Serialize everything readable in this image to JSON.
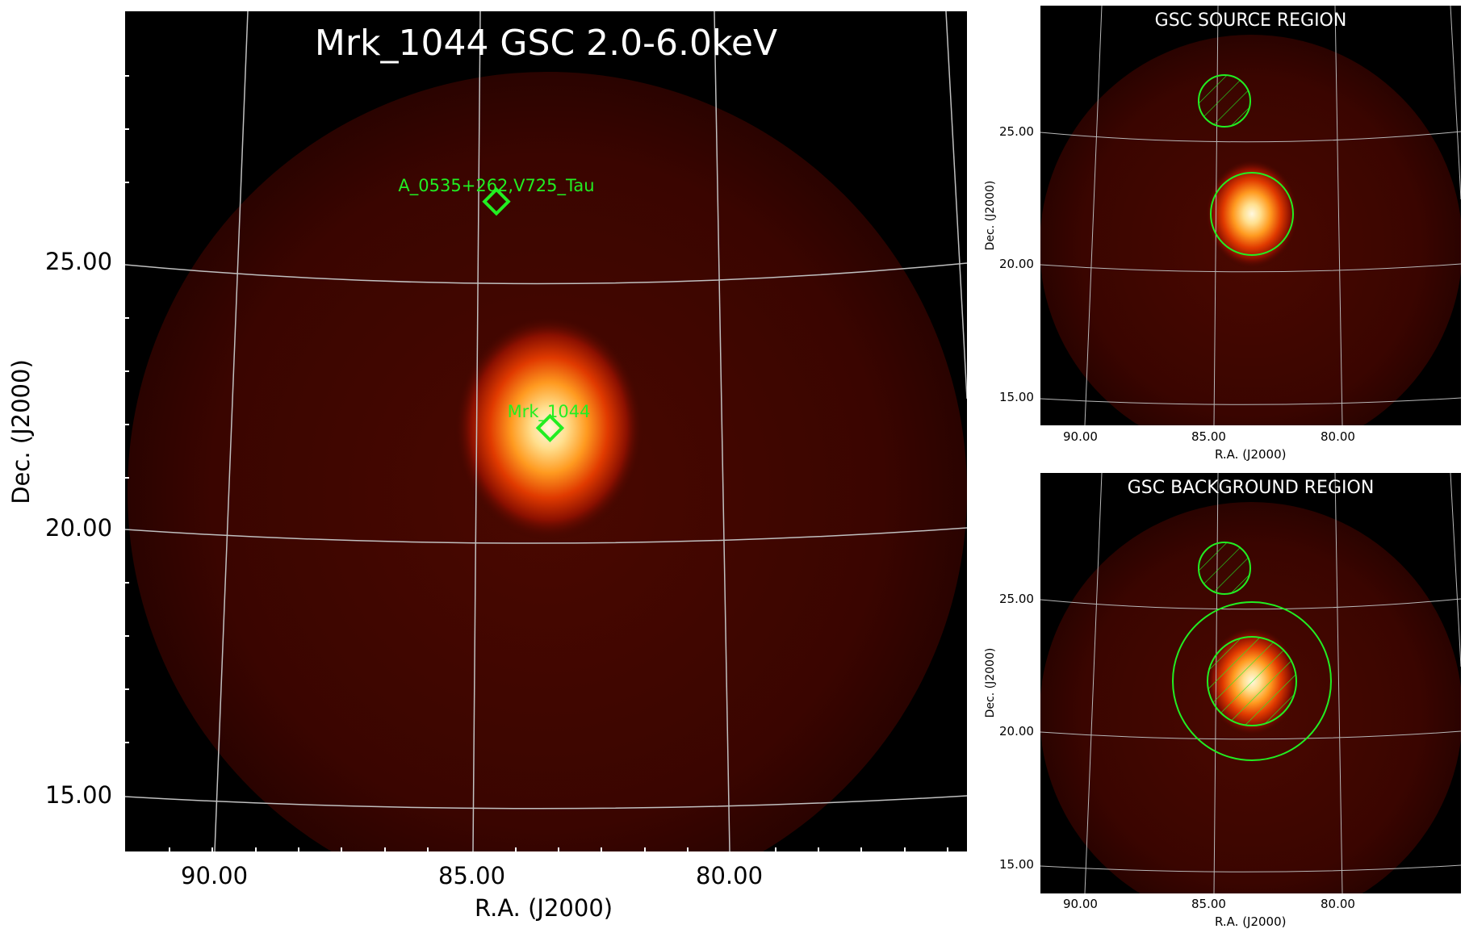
{
  "main": {
    "title": "Mrk_1044 GSC 2.0-6.0keV",
    "xlabel": "R.A. (J2000)",
    "ylabel": "Dec. (J2000)",
    "xticks": [
      "90.00",
      "85.00",
      "80.00"
    ],
    "yticks": [
      "25.00",
      "20.00",
      "15.00"
    ],
    "sources": [
      {
        "name": "A_0535+262,V725_Tau"
      },
      {
        "name": "Mrk_1044"
      }
    ]
  },
  "source_panel": {
    "title": "GSC SOURCE REGION",
    "xlabel": "R.A. (J2000)",
    "ylabel": "Dec. (J2000)",
    "xticks": [
      "90.00",
      "85.00",
      "80.00"
    ],
    "yticks": [
      "25.00",
      "20.00",
      "15.00"
    ]
  },
  "background_panel": {
    "title": "GSC BACKGROUND REGION",
    "xlabel": "R.A. (J2000)",
    "ylabel": "Dec. (J2000)",
    "xticks": [
      "90.00",
      "85.00",
      "80.00"
    ],
    "yticks": [
      "25.00",
      "20.00",
      "15.00"
    ]
  },
  "colors": {
    "background": "#000000",
    "field": "#3a0500",
    "source_core": "#fff4d6",
    "marker": "#22ee22",
    "grid": "#b8b8b8"
  }
}
